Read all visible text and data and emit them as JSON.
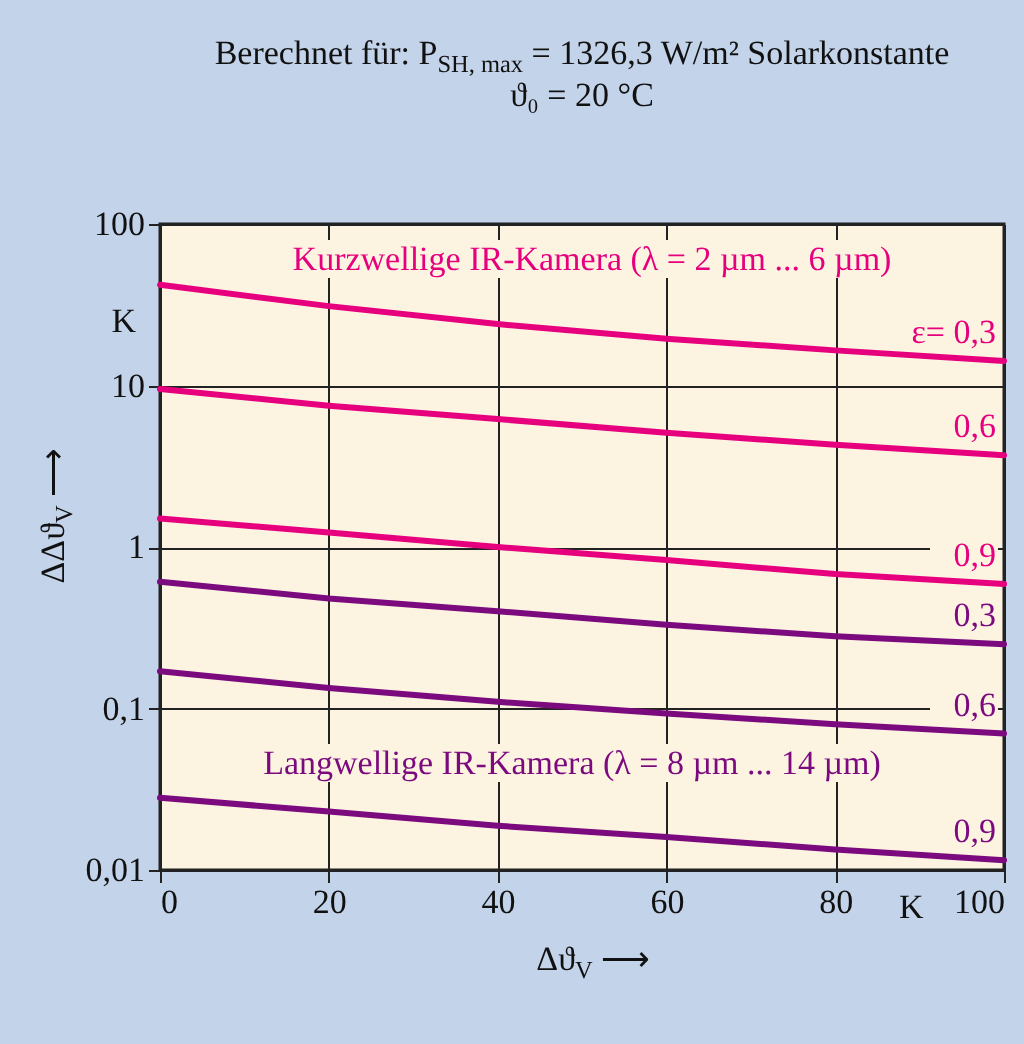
{
  "chart_data": {
    "type": "line",
    "title": "Berechnet für: P$_{SH, max}$ = 1326,3 W/m² Solarkonstante",
    "subtitle": "ϑ₀ = 20 °C",
    "xlabel": "Δϑ$_{V}$ ⟶",
    "ylabel": "ΔΔϑ$_{V}$ ⟶",
    "x": [
      0,
      20,
      40,
      60,
      80,
      100
    ],
    "series": [
      {
        "name": "ε= 0,3",
        "color": "#e6007e",
        "values": [
          42,
          31,
          24,
          19.5,
          16.5,
          14.2
        ]
      },
      {
        "name": "0,6",
        "color": "#e6007e",
        "values": [
          9.5,
          7.5,
          6.2,
          5.1,
          4.3,
          3.7
        ]
      },
      {
        "name": "0,9",
        "color": "#e6007e",
        "values": [
          1.5,
          1.23,
          1.0,
          0.83,
          0.68,
          0.59
        ]
      },
      {
        "name": "0,3",
        "color": "#7b0a7e",
        "values": [
          0.61,
          0.48,
          0.4,
          0.33,
          0.28,
          0.25
        ]
      },
      {
        "name": "0,6",
        "color": "#7b0a7e",
        "values": [
          0.17,
          0.134,
          0.11,
          0.093,
          0.08,
          0.07
        ]
      },
      {
        "name": "0,9",
        "color": "#7b0a7e",
        "values": [
          0.028,
          0.023,
          0.0188,
          0.016,
          0.0134,
          0.0115
        ]
      }
    ],
    "annotations": [
      "Kurzwellige IR-Kamera (λ = 2 µm ... 6 µm)",
      "Langwellige IR-Kamera (λ = 8 µm ... 14 µm)",
      "K",
      "K"
    ],
    "log": true,
    "xlim": [
      0,
      100
    ],
    "xticks": [
      0,
      20,
      40,
      60,
      80,
      100
    ],
    "ylim": [
      0.01,
      100
    ],
    "yticks": [
      {
        "value": 0.01,
        "label": "0,01"
      },
      {
        "value": 0.1,
        "label": "0,1"
      },
      1,
      10,
      100
    ],
    "grid": true,
    "marker": "none",
    "line_style": "solid"
  }
}
